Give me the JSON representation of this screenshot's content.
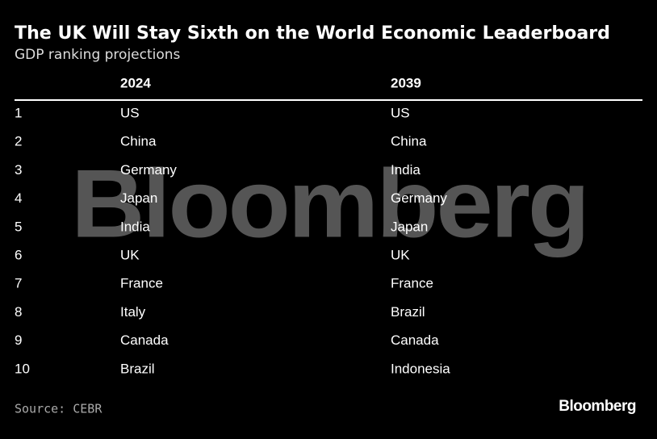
{
  "header": {
    "title": "The UK Will Stay Sixth on the World Economic Leaderboard",
    "subtitle": "GDP ranking projections"
  },
  "watermark": "Bloomberg",
  "table": {
    "columns": [
      "2024",
      "2039"
    ],
    "rows": [
      [
        1,
        "US",
        "US"
      ],
      [
        2,
        "China",
        "China"
      ],
      [
        3,
        "Germany",
        "India"
      ],
      [
        4,
        "Japan",
        "Germany"
      ],
      [
        5,
        "India",
        "Japan"
      ],
      [
        6,
        "UK",
        "UK"
      ],
      [
        7,
        "France",
        "France"
      ],
      [
        8,
        "Italy",
        "Brazil"
      ],
      [
        9,
        "Canada",
        "Canada"
      ],
      [
        10,
        "Brazil",
        "Indonesia"
      ]
    ]
  },
  "footer": {
    "source": "Source: CEBR",
    "logo": "Bloomberg"
  }
}
